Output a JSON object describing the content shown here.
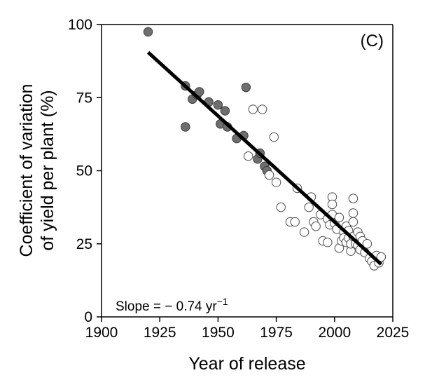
{
  "chart_data": {
    "type": "scatter",
    "title": "",
    "panel_label": "(C)",
    "xlabel": "Year of release",
    "ylabel_line1": "Coefficient of variation",
    "ylabel_line2": "of yield per plant (%)",
    "xlim": [
      1900,
      2025
    ],
    "ylim": [
      0,
      100
    ],
    "x_ticks": [
      1900,
      1925,
      1950,
      1975,
      2000,
      2025
    ],
    "y_ticks": [
      0,
      25,
      50,
      75,
      100
    ],
    "grid": false,
    "annotation": {
      "text": "Slope = − 0.74 yr",
      "superscript": "−1"
    },
    "series": [
      {
        "style": "filled",
        "color": "#6e6e6e",
        "points": [
          [
            1920,
            97.5
          ],
          [
            1936,
            79
          ],
          [
            1936,
            65
          ],
          [
            1939,
            74.5
          ],
          [
            1941,
            76
          ],
          [
            1942,
            77
          ],
          [
            1946,
            73.5
          ],
          [
            1950,
            72.5
          ],
          [
            1951,
            66
          ],
          [
            1953,
            70.5
          ],
          [
            1954,
            65
          ],
          [
            1958,
            61
          ],
          [
            1961,
            62
          ],
          [
            1962,
            78.5
          ],
          [
            1967,
            54
          ],
          [
            1968,
            56
          ],
          [
            1970,
            51.5
          ],
          [
            1971,
            50
          ]
        ]
      },
      {
        "style": "open",
        "color": "#ffffff",
        "points": [
          [
            1963,
            55
          ],
          [
            1965,
            71
          ],
          [
            1969,
            71
          ],
          [
            1972,
            48.5
          ],
          [
            1974,
            61.5
          ],
          [
            1975,
            46
          ],
          [
            1977,
            37.5
          ],
          [
            1981,
            32.5
          ],
          [
            1983,
            32.5
          ],
          [
            1984,
            44
          ],
          [
            1987,
            29
          ],
          [
            1989,
            37.5
          ],
          [
            1990,
            41
          ],
          [
            1991,
            32.5
          ],
          [
            1992,
            31
          ],
          [
            1994,
            35
          ],
          [
            1995,
            26
          ],
          [
            1997,
            33.5
          ],
          [
            1997,
            25.5
          ],
          [
            1998,
            31.5
          ],
          [
            1999,
            41
          ],
          [
            1999,
            38.5
          ],
          [
            1999,
            35
          ],
          [
            2000,
            32
          ],
          [
            2001,
            30
          ],
          [
            2002,
            34
          ],
          [
            2002,
            23.5
          ],
          [
            2003,
            26
          ],
          [
            2004,
            29
          ],
          [
            2004,
            27
          ],
          [
            2005,
            31
          ],
          [
            2005,
            25.5
          ],
          [
            2006,
            29.5
          ],
          [
            2006,
            27
          ],
          [
            2007,
            22.5
          ],
          [
            2007,
            25
          ],
          [
            2008,
            40.5
          ],
          [
            2008,
            35.5
          ],
          [
            2008,
            32.5
          ],
          [
            2008,
            27.5
          ],
          [
            2009,
            25
          ],
          [
            2010,
            29
          ],
          [
            2010,
            24.5
          ],
          [
            2011,
            27.5
          ],
          [
            2011,
            23
          ],
          [
            2012,
            26
          ],
          [
            2013,
            22
          ],
          [
            2014,
            25
          ],
          [
            2015,
            20
          ],
          [
            2016,
            19
          ],
          [
            2017,
            17.5
          ],
          [
            2018,
            21
          ],
          [
            2019,
            18.5
          ],
          [
            2020,
            20.5
          ]
        ]
      }
    ],
    "regression": {
      "x": [
        1920,
        2020
      ],
      "y": [
        90.5,
        18
      ]
    }
  }
}
